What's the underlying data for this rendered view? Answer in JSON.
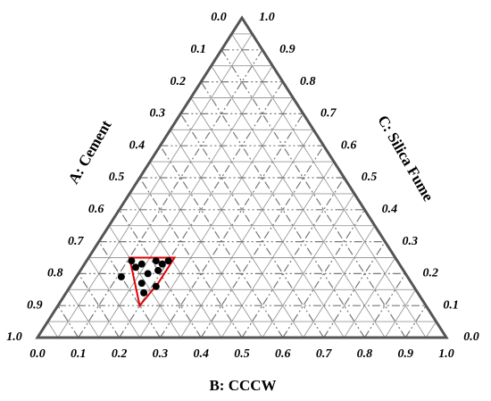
{
  "chart_data": {
    "type": "ternary",
    "a_label": "A: Cement",
    "b_label": "B: CCCW",
    "c_label": "C: Silica Fume",
    "aticks": [
      {
        "value": 0,
        "label": "0.0"
      },
      0.1,
      0.2,
      0.3,
      0.4,
      0.5,
      0.6,
      0.7,
      0.8,
      0.9,
      {
        "value": 1,
        "label": "1.0"
      }
    ],
    "bticks": [
      {
        "value": 0,
        "label": "0.0"
      },
      0.1,
      0.2,
      0.3,
      0.4,
      0.5,
      0.6,
      0.7,
      0.8,
      0.9,
      {
        "value": 1,
        "label": "1.0"
      }
    ],
    "cticks": [
      {
        "value": 0,
        "label": "0.0"
      },
      0.1,
      0.2,
      0.3,
      0.4,
      0.5,
      0.6,
      0.7,
      0.8,
      0.9,
      {
        "value": 1,
        "label": "1.0"
      }
    ],
    "grid": true,
    "color": "#000000",
    "a": [
      0.65,
      0.63,
      0.59,
      0.58,
      0.65,
      0.63,
      0.6,
      0.7,
      0.66,
      0.63,
      0.67,
      0.56
    ],
    "b": [
      0.11,
      0.14,
      0.17,
      0.19,
      0.13,
      0.17,
      0.19,
      0.11,
      0.17,
      0.21,
      0.19,
      0.2
    ],
    "c": [
      0.24,
      0.23,
      0.24,
      0.23,
      0.22,
      0.2,
      0.21,
      0.19,
      0.17,
      0.16,
      0.14,
      0.24
    ],
    "region": {
      "color": "#e00000",
      "a": [
        0.65,
        0.54,
        0.62,
        0.7
      ],
      "b": [
        0.1,
        0.21,
        0.21,
        0.2
      ],
      "c": [
        0.25,
        0.25,
        0.17,
        0.1
      ]
    }
  }
}
